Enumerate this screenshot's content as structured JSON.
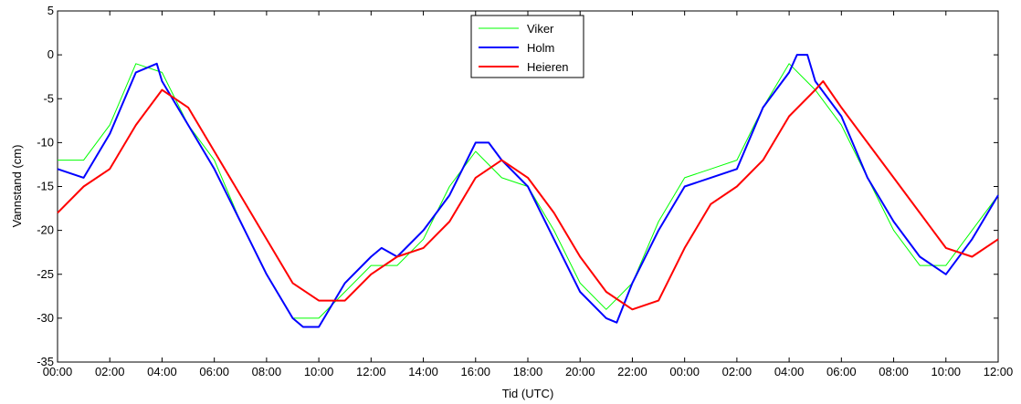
{
  "chart_data": {
    "type": "line",
    "xlabel": "Tid (UTC)",
    "ylabel": "Vannstand (cm)",
    "xlim": [
      0,
      36
    ],
    "ylim": [
      -35,
      5
    ],
    "x_ticks": [
      0,
      2,
      4,
      6,
      8,
      10,
      12,
      14,
      16,
      18,
      20,
      22,
      24,
      26,
      28,
      30,
      32,
      34,
      36
    ],
    "x_tick_labels": [
      "00:00",
      "02:00",
      "04:00",
      "06:00",
      "08:00",
      "10:00",
      "12:00",
      "14:00",
      "16:00",
      "18:00",
      "20:00",
      "22:00",
      "00:00",
      "02:00",
      "04:00",
      "06:00",
      "08:00",
      "10:00",
      "12:00"
    ],
    "y_ticks": [
      5,
      0,
      -5,
      -10,
      -15,
      -20,
      -25,
      -30,
      -35
    ],
    "y_tick_labels": [
      "5",
      "0",
      "-5",
      "-10",
      "-15",
      "-20",
      "-25",
      "-30",
      "-35"
    ],
    "grid": false,
    "legend_position": "top-center",
    "series": [
      {
        "name": "Viker",
        "color": "#00ff00",
        "points": [
          [
            0,
            -12
          ],
          [
            1,
            -12
          ],
          [
            2,
            -8
          ],
          [
            3,
            -1
          ],
          [
            4,
            -2
          ],
          [
            5,
            -8
          ],
          [
            6,
            -12
          ],
          [
            7,
            -19
          ],
          [
            8,
            -25
          ],
          [
            9,
            -30
          ],
          [
            10,
            -30
          ],
          [
            11,
            -27
          ],
          [
            12,
            -24
          ],
          [
            13,
            -24
          ],
          [
            14,
            -21
          ],
          [
            15,
            -15
          ],
          [
            16,
            -11
          ],
          [
            17,
            -14
          ],
          [
            18,
            -15
          ],
          [
            19,
            -20
          ],
          [
            20,
            -26
          ],
          [
            21,
            -29
          ],
          [
            22,
            -26
          ],
          [
            23,
            -19
          ],
          [
            24,
            -14
          ],
          [
            25,
            -13
          ],
          [
            26,
            -12
          ],
          [
            27,
            -6
          ],
          [
            28,
            -1
          ],
          [
            29,
            -4
          ],
          [
            30,
            -8
          ],
          [
            31,
            -14
          ],
          [
            32,
            -20
          ],
          [
            33,
            -24
          ],
          [
            34,
            -24
          ],
          [
            35,
            -20
          ],
          [
            36,
            -16
          ]
        ]
      },
      {
        "name": "Holm",
        "color": "#0000ff",
        "points": [
          [
            0,
            -13
          ],
          [
            1,
            -14
          ],
          [
            2,
            -9
          ],
          [
            3,
            -2
          ],
          [
            3.8,
            -1
          ],
          [
            4,
            -3
          ],
          [
            5,
            -8
          ],
          [
            6,
            -13
          ],
          [
            7,
            -19
          ],
          [
            8,
            -25
          ],
          [
            9,
            -30
          ],
          [
            9.4,
            -31
          ],
          [
            10,
            -31
          ],
          [
            11,
            -26
          ],
          [
            12,
            -23
          ],
          [
            12.4,
            -22
          ],
          [
            13,
            -23
          ],
          [
            14,
            -20
          ],
          [
            15,
            -16
          ],
          [
            15.5,
            -13
          ],
          [
            16,
            -10
          ],
          [
            16.5,
            -10
          ],
          [
            17,
            -12
          ],
          [
            18,
            -15
          ],
          [
            19,
            -21
          ],
          [
            20,
            -27
          ],
          [
            21,
            -30
          ],
          [
            21.4,
            -30.5
          ],
          [
            22,
            -26
          ],
          [
            23,
            -20
          ],
          [
            24,
            -15
          ],
          [
            25,
            -14
          ],
          [
            26,
            -13
          ],
          [
            27,
            -6
          ],
          [
            28,
            -2
          ],
          [
            28.3,
            0
          ],
          [
            28.7,
            0
          ],
          [
            29,
            -3
          ],
          [
            30,
            -7
          ],
          [
            31,
            -14
          ],
          [
            32,
            -19
          ],
          [
            33,
            -23
          ],
          [
            34,
            -25
          ],
          [
            35,
            -21
          ],
          [
            36,
            -16
          ]
        ]
      },
      {
        "name": "Heieren",
        "color": "#ff0000",
        "points": [
          [
            0,
            -18
          ],
          [
            1,
            -15
          ],
          [
            2,
            -13
          ],
          [
            3,
            -8
          ],
          [
            4,
            -4
          ],
          [
            5,
            -6
          ],
          [
            6,
            -11
          ],
          [
            7,
            -16
          ],
          [
            8,
            -21
          ],
          [
            9,
            -26
          ],
          [
            10,
            -28
          ],
          [
            11,
            -28
          ],
          [
            12,
            -25
          ],
          [
            13,
            -23
          ],
          [
            14,
            -22
          ],
          [
            15,
            -19
          ],
          [
            16,
            -14
          ],
          [
            17,
            -12
          ],
          [
            18,
            -14
          ],
          [
            19,
            -18
          ],
          [
            20,
            -23
          ],
          [
            21,
            -27
          ],
          [
            22,
            -29
          ],
          [
            23,
            -28
          ],
          [
            24,
            -22
          ],
          [
            25,
            -17
          ],
          [
            26,
            -15
          ],
          [
            27,
            -12
          ],
          [
            28,
            -7
          ],
          [
            29,
            -4
          ],
          [
            29.3,
            -3
          ],
          [
            30,
            -6
          ],
          [
            31,
            -10
          ],
          [
            32,
            -14
          ],
          [
            33,
            -18
          ],
          [
            34,
            -22
          ],
          [
            35,
            -23
          ],
          [
            36,
            -21
          ]
        ]
      }
    ]
  }
}
